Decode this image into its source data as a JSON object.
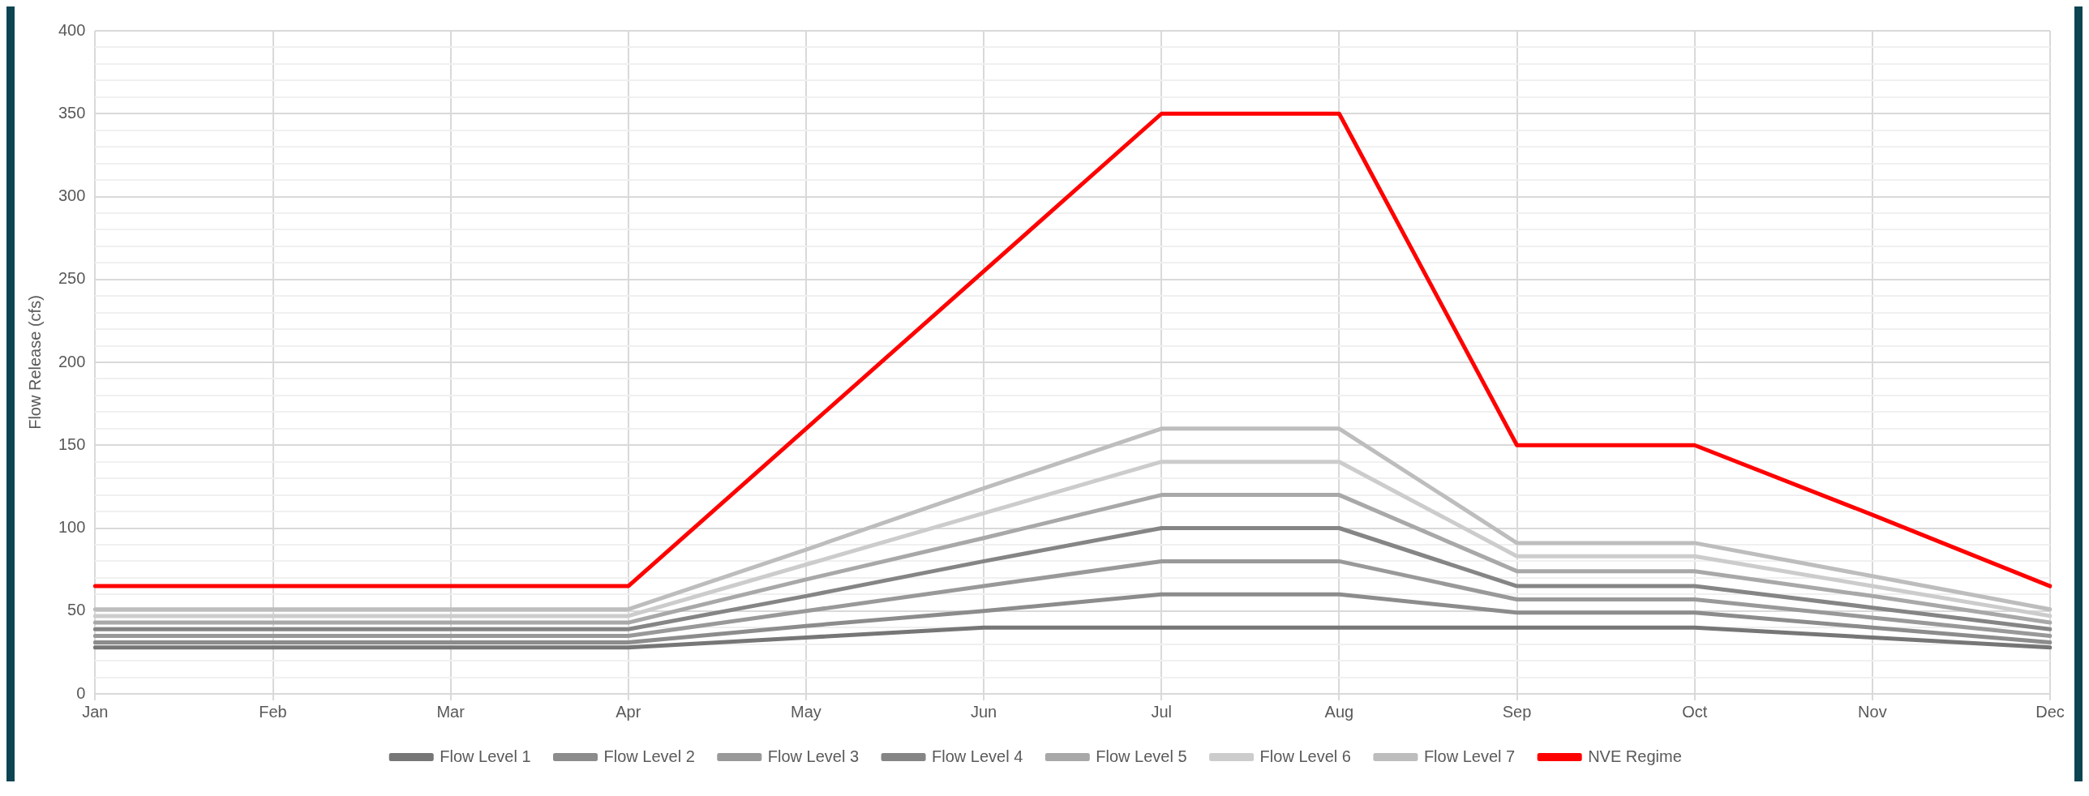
{
  "chart_data": {
    "type": "line",
    "ylabel": "Flow Release (cfs)",
    "categories": [
      "Jan",
      "Feb",
      "Mar",
      "Apr",
      "May",
      "Jun",
      "Jul",
      "Aug",
      "Sep",
      "Oct",
      "Nov",
      "Dec"
    ],
    "series": [
      {
        "name": "Flow Level 1",
        "color": "#767676",
        "values": [
          28,
          28,
          28,
          28,
          34,
          40,
          40,
          40,
          40,
          40,
          34,
          28
        ]
      },
      {
        "name": "Flow Level 2",
        "color": "#8c8c8c",
        "values": [
          31,
          31,
          31,
          31,
          41,
          50,
          60,
          60,
          49,
          49,
          40,
          31
        ]
      },
      {
        "name": "Flow Level 3",
        "color": "#999999",
        "values": [
          35,
          35,
          35,
          35,
          50,
          65,
          80,
          80,
          57,
          57,
          46,
          35
        ]
      },
      {
        "name": "Flow Level 4",
        "color": "#858585",
        "values": [
          39,
          39,
          39,
          39,
          59,
          80,
          100,
          100,
          65,
          65,
          52,
          39
        ]
      },
      {
        "name": "Flow Level 5",
        "color": "#a8a8a8",
        "values": [
          43,
          43,
          43,
          43,
          69,
          94,
          120,
          120,
          74,
          74,
          59,
          43
        ]
      },
      {
        "name": "Flow Level 6",
        "color": "#cccccc",
        "values": [
          47,
          47,
          47,
          47,
          78,
          109,
          140,
          140,
          83,
          83,
          65,
          47
        ]
      },
      {
        "name": "Flow Level 7",
        "color": "#bdbdbd",
        "values": [
          51,
          51,
          51,
          51,
          87,
          124,
          160,
          160,
          91,
          91,
          71,
          51
        ]
      },
      {
        "name": "NVE Regime",
        "color": "#ff0000",
        "values": [
          65,
          65,
          65,
          65,
          160,
          255,
          350,
          350,
          150,
          150,
          108,
          65
        ]
      }
    ],
    "ylim": [
      0,
      400
    ],
    "yticks": [
      0,
      {
        "value": 10,
        "label": null
      },
      {
        "value": 20,
        "label": null
      },
      {
        "value": 30,
        "label": null
      },
      {
        "value": 40,
        "label": null
      },
      50,
      {
        "value": 60,
        "label": null
      },
      {
        "value": 70,
        "label": null
      },
      {
        "value": 80,
        "label": null
      },
      {
        "value": 90,
        "label": null
      },
      100,
      {
        "value": 110,
        "label": null
      },
      {
        "value": 120,
        "label": null
      },
      {
        "value": 130,
        "label": null
      },
      {
        "value": 140,
        "label": null
      },
      150,
      {
        "value": 160,
        "label": null
      },
      {
        "value": 170,
        "label": null
      },
      {
        "value": 180,
        "label": null
      },
      {
        "value": 190,
        "label": null
      },
      200,
      {
        "value": 210,
        "label": null
      },
      {
        "value": 220,
        "label": null
      },
      {
        "value": 230,
        "label": null
      },
      {
        "value": 240,
        "label": null
      },
      250,
      {
        "value": 260,
        "label": null
      },
      {
        "value": 270,
        "label": null
      },
      {
        "value": 280,
        "label": null
      },
      {
        "value": 290,
        "label": null
      },
      300,
      {
        "value": 310,
        "label": null
      },
      {
        "value": 320,
        "label": null
      },
      {
        "value": 330,
        "label": null
      },
      {
        "value": 340,
        "label": null
      },
      350,
      {
        "value": 360,
        "label": null
      },
      {
        "value": 370,
        "label": null
      },
      {
        "value": 380,
        "label": null
      },
      {
        "value": 390,
        "label": null
      },
      400
    ],
    "grid": true,
    "legend": "bottom",
    "marker": "none",
    "line_style": "solid"
  }
}
